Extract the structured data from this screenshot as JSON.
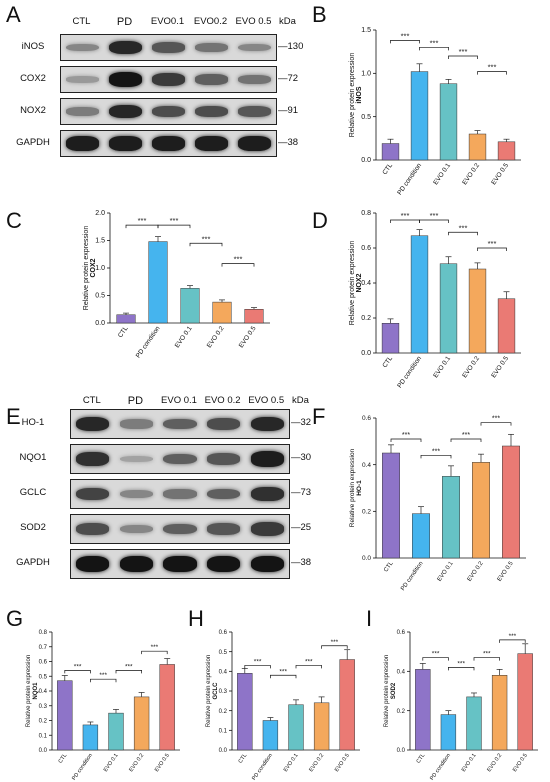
{
  "panel_letters": [
    "A",
    "B",
    "C",
    "D",
    "E",
    "F",
    "G",
    "H",
    "I"
  ],
  "significance_label": "***",
  "blot_A": {
    "lanes": [
      "CTL",
      "PD",
      "EVO0.1",
      "EVO0.2",
      "EVO 0.5"
    ],
    "kda_label": "kDa",
    "rows": [
      {
        "name": "iNOS",
        "mw": "130",
        "intensity": [
          0.35,
          0.85,
          0.6,
          0.45,
          0.35
        ]
      },
      {
        "name": "COX2",
        "mw": "72",
        "intensity": [
          0.25,
          0.95,
          0.75,
          0.55,
          0.45
        ]
      },
      {
        "name": "NOX2",
        "mw": "91",
        "intensity": [
          0.4,
          0.85,
          0.65,
          0.65,
          0.6
        ]
      },
      {
        "name": "GAPDH",
        "mw": "38",
        "intensity": [
          0.9,
          0.9,
          0.9,
          0.9,
          0.9
        ]
      }
    ]
  },
  "blot_E": {
    "lanes": [
      "CTL",
      "PD",
      "EVO 0.1",
      "EVO 0.2",
      "EVO 0.5"
    ],
    "kda_label": "kDa",
    "rows": [
      {
        "name": "HO-1",
        "mw": "32",
        "intensity": [
          0.85,
          0.4,
          0.55,
          0.65,
          0.85
        ]
      },
      {
        "name": "NQO1",
        "mw": "30",
        "intensity": [
          0.8,
          0.2,
          0.55,
          0.6,
          0.9
        ]
      },
      {
        "name": "GCLC",
        "mw": "73",
        "intensity": [
          0.7,
          0.35,
          0.45,
          0.55,
          0.8
        ]
      },
      {
        "name": "SOD2",
        "mw": "25",
        "intensity": [
          0.65,
          0.35,
          0.55,
          0.6,
          0.75
        ]
      },
      {
        "name": "GAPDH",
        "mw": "38",
        "intensity": [
          0.95,
          0.95,
          0.95,
          0.95,
          0.95
        ]
      }
    ]
  },
  "colors": {
    "CTL": "#8e74c8",
    "PD condition": "#45b4ee",
    "EVO 0.1": "#66c2c5",
    "EVO 0.2": "#f4a85c",
    "EVO 0.5": "#ea7a74"
  },
  "chart_data": [
    {
      "panel": "B",
      "type": "bar",
      "categories": [
        "CTL",
        "PD condition",
        "EVO 0.1",
        "EVO 0.2",
        "EVO 0.5"
      ],
      "values": [
        0.19,
        1.02,
        0.88,
        0.3,
        0.21
      ],
      "errors": [
        0.05,
        0.09,
        0.05,
        0.04,
        0.03
      ],
      "ylabel": "Relative protein expression",
      "ylabel2": "iNOS",
      "ylim": [
        0,
        1.5
      ],
      "yticks": [
        "0.0",
        "0.5",
        "1.0",
        "1.5"
      ],
      "sig": [
        [
          0,
          1,
          1.38
        ],
        [
          1,
          2,
          1.3
        ],
        [
          2,
          3,
          1.2
        ],
        [
          3,
          4,
          1.02
        ]
      ]
    },
    {
      "panel": "C",
      "type": "bar",
      "categories": [
        "CTL",
        "PD condition",
        "EVO 0.1",
        "EVO 0.2",
        "EVO 0.5"
      ],
      "values": [
        0.15,
        1.48,
        0.63,
        0.38,
        0.25
      ],
      "errors": [
        0.03,
        0.09,
        0.05,
        0.04,
        0.03
      ],
      "ylabel": "Relative protein expression",
      "ylabel2": "COX2",
      "ylim": [
        0,
        2.0
      ],
      "yticks": [
        "0.0",
        "0.5",
        "1.0",
        "1.5",
        "2.0"
      ],
      "sig": [
        [
          0,
          1,
          1.78
        ],
        [
          1,
          2,
          1.78
        ],
        [
          2,
          3,
          1.45
        ],
        [
          3,
          4,
          1.08
        ]
      ]
    },
    {
      "panel": "D",
      "type": "bar",
      "categories": [
        "CTL",
        "PD condition",
        "EVO 0.1",
        "EVO 0.2",
        "EVO 0.5"
      ],
      "values": [
        0.17,
        0.67,
        0.51,
        0.48,
        0.31
      ],
      "errors": [
        0.025,
        0.035,
        0.04,
        0.035,
        0.04
      ],
      "ylabel": "Relative protein expression",
      "ylabel2": "NOX2",
      "ylim": [
        0,
        0.8
      ],
      "yticks": [
        "0.0",
        "0.2",
        "0.4",
        "0.6",
        "0.8"
      ],
      "sig": [
        [
          0,
          1,
          0.76
        ],
        [
          1,
          2,
          0.76
        ],
        [
          2,
          3,
          0.69
        ],
        [
          3,
          4,
          0.6
        ]
      ]
    },
    {
      "panel": "F",
      "type": "bar",
      "categories": [
        "CTL",
        "PD condition",
        "EVO 0.1",
        "EVO 0.2",
        "EVO 0.5"
      ],
      "values": [
        0.45,
        0.19,
        0.35,
        0.41,
        0.48
      ],
      "errors": [
        0.035,
        0.03,
        0.045,
        0.035,
        0.05
      ],
      "ylabel": "Relative protein expression",
      "ylabel2": "HO-1",
      "ylim": [
        0,
        0.6
      ],
      "yticks": [
        "0.0",
        "0.2",
        "0.4",
        "0.6"
      ],
      "sig": [
        [
          0,
          1,
          0.51
        ],
        [
          1,
          2,
          0.44
        ],
        [
          2,
          3,
          0.51
        ],
        [
          3,
          4,
          0.58
        ]
      ]
    },
    {
      "panel": "G",
      "type": "bar",
      "categories": [
        "CTL",
        "PD condition",
        "EVO 0.1",
        "EVO 0.2",
        "EVO 0.5"
      ],
      "values": [
        0.47,
        0.17,
        0.25,
        0.36,
        0.58
      ],
      "errors": [
        0.035,
        0.02,
        0.025,
        0.03,
        0.04
      ],
      "ylabel": "Relative protein expression",
      "ylabel2": "NQO1",
      "ylim": [
        0,
        0.8
      ],
      "yticks": [
        "0.0",
        "0.1",
        "0.2",
        "0.3",
        "0.4",
        "0.5",
        "0.6",
        "0.7",
        "0.8"
      ],
      "sig": [
        [
          0,
          1,
          0.54
        ],
        [
          1,
          2,
          0.48
        ],
        [
          2,
          3,
          0.54
        ],
        [
          3,
          4,
          0.67
        ]
      ]
    },
    {
      "panel": "H",
      "type": "bar",
      "categories": [
        "CTL",
        "PD condition",
        "EVO 0.1",
        "EVO 0.2",
        "EVO 0.5"
      ],
      "values": [
        0.39,
        0.15,
        0.23,
        0.24,
        0.46
      ],
      "errors": [
        0.025,
        0.015,
        0.025,
        0.03,
        0.05
      ],
      "ylabel": "Relative protein expression",
      "ylabel2": "GCLC",
      "ylim": [
        0,
        0.6
      ],
      "yticks": [
        "0.0",
        "0.1",
        "0.2",
        "0.3",
        "0.4",
        "0.5",
        "0.6"
      ],
      "sig": [
        [
          0,
          1,
          0.43
        ],
        [
          1,
          2,
          0.38
        ],
        [
          2,
          3,
          0.43
        ],
        [
          3,
          4,
          0.53
        ]
      ]
    },
    {
      "panel": "I",
      "type": "bar",
      "categories": [
        "CTL",
        "PD condition",
        "EVO 0.1",
        "EVO 0.2",
        "EVO 0.5"
      ],
      "values": [
        0.41,
        0.18,
        0.27,
        0.38,
        0.49
      ],
      "errors": [
        0.03,
        0.02,
        0.02,
        0.03,
        0.05
      ],
      "ylabel": "Relative protein expression",
      "ylabel2": "SOD2",
      "ylim": [
        0,
        0.6
      ],
      "yticks": [
        "0.0",
        "0.2",
        "0.4",
        "0.6"
      ],
      "sig": [
        [
          0,
          1,
          0.47
        ],
        [
          1,
          2,
          0.42
        ],
        [
          2,
          3,
          0.47
        ],
        [
          3,
          4,
          0.56
        ]
      ]
    }
  ]
}
